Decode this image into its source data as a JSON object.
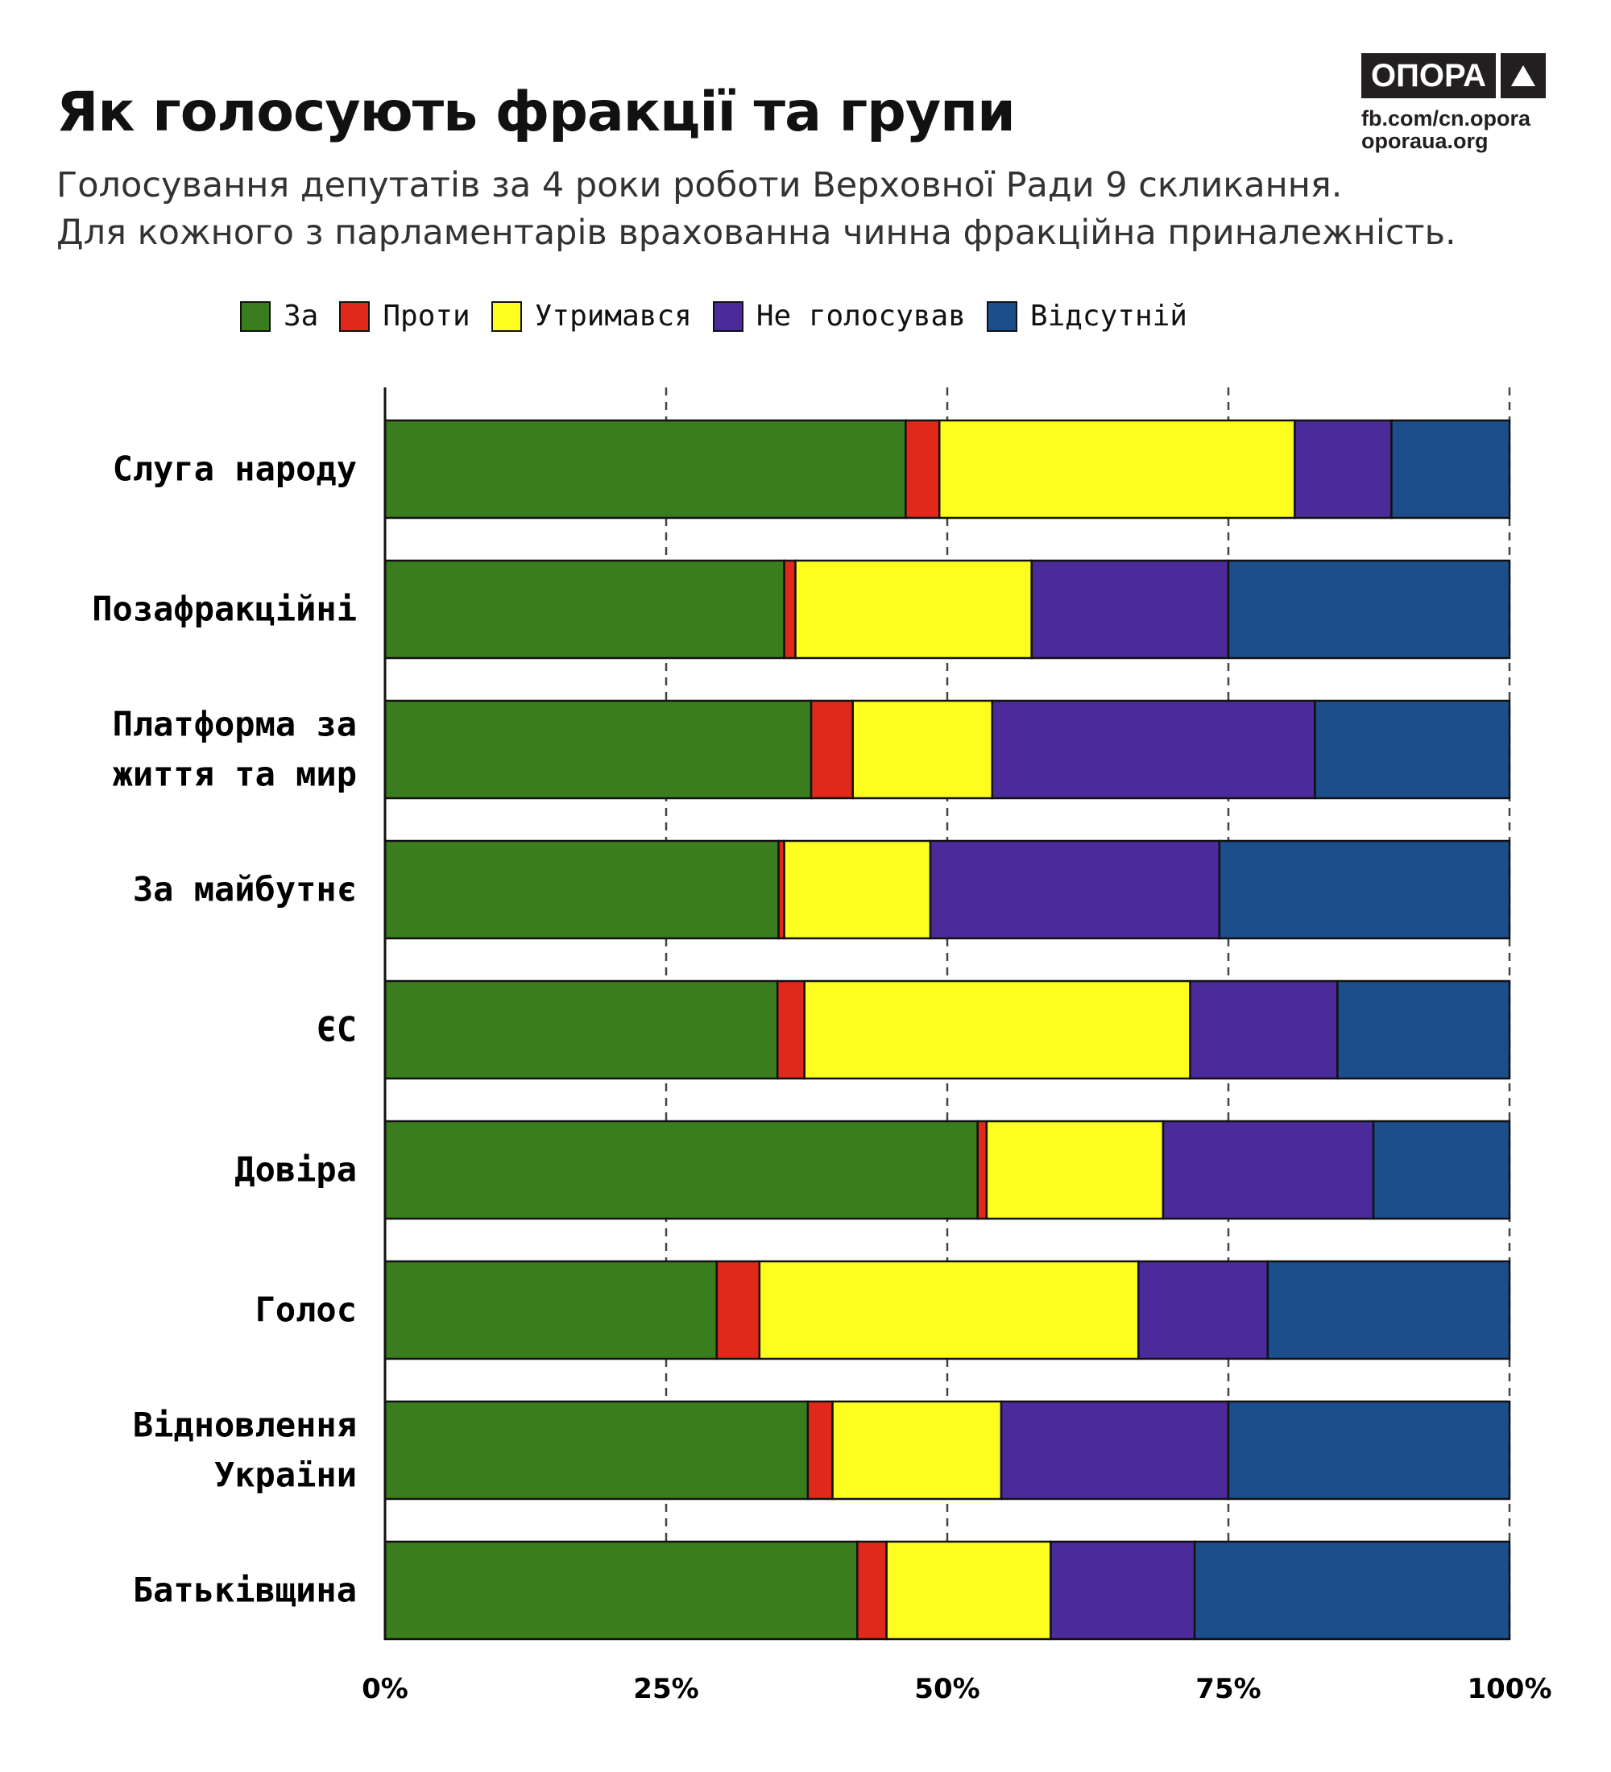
{
  "header": {
    "title": "Як голосують фракції та групи",
    "subtitle_1": "Голосування депутатів за 4 роки роботи Верховної Ради 9 скликання.",
    "subtitle_2": "Для кожного з парламентарів врахованна чинна фракційна приналежність.",
    "logo": "ОПОРА",
    "link_1": "fb.com/cn.opora",
    "link_2": "oporaua.org"
  },
  "chart_data": {
    "type": "bar",
    "orientation": "horizontal-stacked-100",
    "categories": [
      [
        "Слуга народу"
      ],
      [
        "Позафракційні"
      ],
      [
        "Платформа за",
        "життя та мир"
      ],
      [
        "За майбутнє"
      ],
      [
        "ЄС"
      ],
      [
        "Довіра"
      ],
      [
        "Голос"
      ],
      [
        "Відновлення",
        "України"
      ],
      [
        "Батьківщина"
      ]
    ],
    "series": [
      {
        "name": "За",
        "color": "#3a7d1e",
        "values": [
          46.3,
          35.5,
          37.9,
          35.0,
          34.9,
          52.7,
          29.5,
          37.6,
          42.0
        ]
      },
      {
        "name": "Проти",
        "color": "#e0291b",
        "values": [
          3.0,
          1.0,
          3.7,
          0.5,
          2.4,
          0.8,
          3.8,
          2.2,
          2.6
        ]
      },
      {
        "name": "Утримався",
        "color": "#fdfd20",
        "values": [
          31.6,
          21.0,
          12.4,
          13.0,
          34.3,
          15.7,
          33.7,
          15.0,
          14.6
        ]
      },
      {
        "name": "Не голосував",
        "color": "#4b2a99",
        "values": [
          8.6,
          17.5,
          28.7,
          25.7,
          13.1,
          18.7,
          11.5,
          20.2,
          12.8
        ]
      },
      {
        "name": "Відсутній",
        "color": "#1c4e8c",
        "values": [
          10.5,
          25.0,
          17.3,
          25.8,
          15.3,
          12.1,
          21.5,
          25.0,
          28.0
        ]
      }
    ],
    "xlim": [
      0,
      100
    ],
    "xticks": [
      0,
      25,
      50,
      75,
      100
    ],
    "xtick_labels": [
      "0%",
      "25%",
      "50%",
      "75%",
      "100%"
    ],
    "grid": "vertical dashed",
    "legend": "top"
  }
}
